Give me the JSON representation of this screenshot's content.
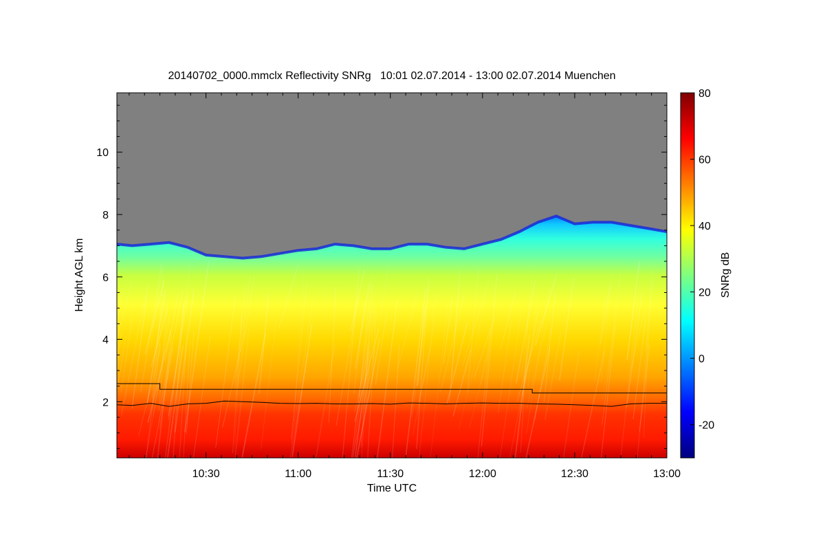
{
  "chart_data": {
    "type": "heatmap",
    "title": "20140702_0000.mmclx Reflectivity SNRg   10:01 02.07.2014 - 13:00 02.07.2014 Muenchen",
    "xlabel": "Time UTC",
    "ylabel": "Height AGL km",
    "colorbar_label": "SNRg dB",
    "x_tick_labels": [
      "10:30",
      "11:00",
      "11:30",
      "12:00",
      "12:30",
      "13:00"
    ],
    "x_ticks_hours": [
      10.5,
      11.0,
      11.5,
      12.0,
      12.5,
      13.0
    ],
    "xlim_hours": [
      10.0167,
      13.0
    ],
    "y_ticks": [
      2,
      4,
      6,
      8,
      10
    ],
    "ylim": [
      0.2,
      11.9
    ],
    "colorbar_ticks": [
      -20,
      0,
      20,
      40,
      60,
      80
    ],
    "colorbar_range": [
      -30,
      80
    ],
    "colormap": [
      "#00007f",
      "#0000ff",
      "#007fff",
      "#00ffff",
      "#7fff7f",
      "#ffff00",
      "#ff7f00",
      "#ff0000",
      "#7f0000"
    ],
    "background_color": "#808080",
    "cloud_top_km": {
      "time_hours": [
        10.0167,
        10.1,
        10.2,
        10.3,
        10.4,
        10.5,
        10.6,
        10.7,
        10.8,
        10.9,
        11.0,
        11.1,
        11.2,
        11.3,
        11.4,
        11.5,
        11.6,
        11.7,
        11.8,
        11.9,
        12.0,
        12.1,
        12.2,
        12.3,
        12.4,
        12.5,
        12.6,
        12.7,
        12.8,
        12.9,
        13.0
      ],
      "height_km": [
        7.05,
        7.0,
        7.05,
        7.1,
        6.95,
        6.7,
        6.65,
        6.6,
        6.65,
        6.75,
        6.85,
        6.9,
        7.05,
        7.0,
        6.9,
        6.9,
        7.05,
        7.05,
        6.95,
        6.9,
        7.05,
        7.2,
        7.45,
        7.75,
        7.95,
        7.7,
        7.75,
        7.75,
        7.65,
        7.55,
        7.45
      ]
    },
    "line_upper_km": {
      "time_hours": [
        10.0167,
        10.25,
        10.25,
        12.27,
        12.27,
        13.0
      ],
      "height_km": [
        2.58,
        2.58,
        2.4,
        2.4,
        2.28,
        2.28
      ]
    },
    "line_lower_km": {
      "time_hours": [
        10.0167,
        10.1,
        10.2,
        10.3,
        10.4,
        10.5,
        10.6,
        10.7,
        10.8,
        10.9,
        11.0,
        11.1,
        11.2,
        11.3,
        11.4,
        11.5,
        11.6,
        11.7,
        11.8,
        11.9,
        12.0,
        12.1,
        12.2,
        12.3,
        12.4,
        12.5,
        12.6,
        12.7,
        12.8,
        12.9,
        13.0
      ],
      "height_km": [
        1.9,
        1.88,
        1.95,
        1.85,
        1.93,
        1.95,
        2.02,
        2.0,
        1.98,
        1.95,
        1.94,
        1.95,
        1.93,
        1.93,
        1.94,
        1.92,
        1.96,
        1.95,
        1.93,
        1.95,
        1.96,
        1.95,
        1.95,
        1.93,
        1.92,
        1.9,
        1.88,
        1.85,
        1.93,
        1.95,
        1.95
      ]
    }
  }
}
